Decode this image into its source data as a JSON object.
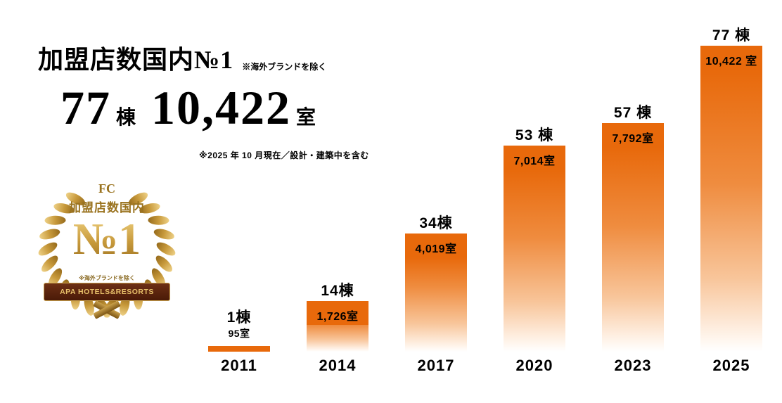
{
  "header": {
    "title": "加盟店数国内№1",
    "title_note": "※海外ブランドを除く",
    "buildings_value": "77",
    "buildings_unit": "棟",
    "rooms_value": "10,422",
    "rooms_unit": "室",
    "note": "※2025 年 10 月現在／設計・建築中を含む"
  },
  "badge": {
    "top_label": "FC",
    "sub_label": "加盟店数国内",
    "rank": "№1",
    "note": "※海外ブランドを除く",
    "banner": "APA HOTELS&RESORTS"
  },
  "chart_data": {
    "type": "bar",
    "title": "加盟店数国内№1",
    "categories": [
      "2011",
      "2014",
      "2017",
      "2020",
      "2023",
      "2025"
    ],
    "series": [
      {
        "name": "棟",
        "values": [
          1,
          14,
          34,
          53,
          57,
          77
        ]
      },
      {
        "name": "室",
        "values": [
          95,
          1726,
          4019,
          7014,
          7792,
          10422
        ]
      }
    ],
    "bar_building_labels": [
      "1棟",
      "14棟",
      "34棟",
      "53 棟",
      "57 棟",
      "77 棟"
    ],
    "bar_room_labels": [
      "95室",
      "1,726室",
      "4,019室",
      "7,014室",
      "7,792室",
      "10,422 室"
    ],
    "ylim": [
      0,
      10422
    ],
    "grid": false,
    "legend": false,
    "bar_color_top": "#e8690b",
    "bar_color_bottom": "#ffffff"
  }
}
